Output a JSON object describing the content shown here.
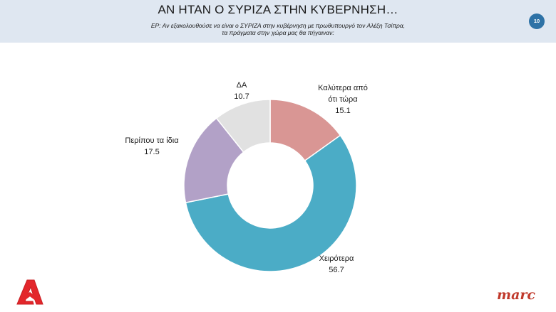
{
  "header": {
    "title": "ΑΝ ΗΤΑΝ Ο ΣΥΡΙΖΑ ΣΤΗΝ ΚΥΒΕΡΝΗΣΗ…",
    "subtitle_line1": "ΕΡ: Αν εξακολουθούσε να είναι ο ΣΥΡΙΖΑ στην κυβέρνηση με πρωθυπουργό τον Αλέξη Τσίπρα,",
    "subtitle_line2": "τα πράγματα στην χώρα μας θα πήγαιναν:",
    "page_number": "10"
  },
  "chart_data": {
    "type": "pie",
    "donut": true,
    "slices": [
      {
        "label_line1": "Καλύτερα από",
        "label_line2": "ότι τώρα",
        "value": 15.1,
        "value_text": "15.1",
        "color": "#d99694"
      },
      {
        "label_line1": "Χειρότερα",
        "label_line2": "",
        "value": 56.7,
        "value_text": "56.7",
        "color": "#4bacc6"
      },
      {
        "label_line1": "Περίπου τα ίδια",
        "label_line2": "",
        "value": 17.5,
        "value_text": "17.5",
        "color": "#b2a1c7"
      },
      {
        "label_line1": "ΔΑ",
        "label_line2": "",
        "value": 10.7,
        "value_text": "10.7",
        "color": "#e1e1e1"
      }
    ]
  },
  "branding": {
    "left_logo": "alpha-logo",
    "right_logo_text": "marc",
    "brand_red": "#e3262b"
  }
}
